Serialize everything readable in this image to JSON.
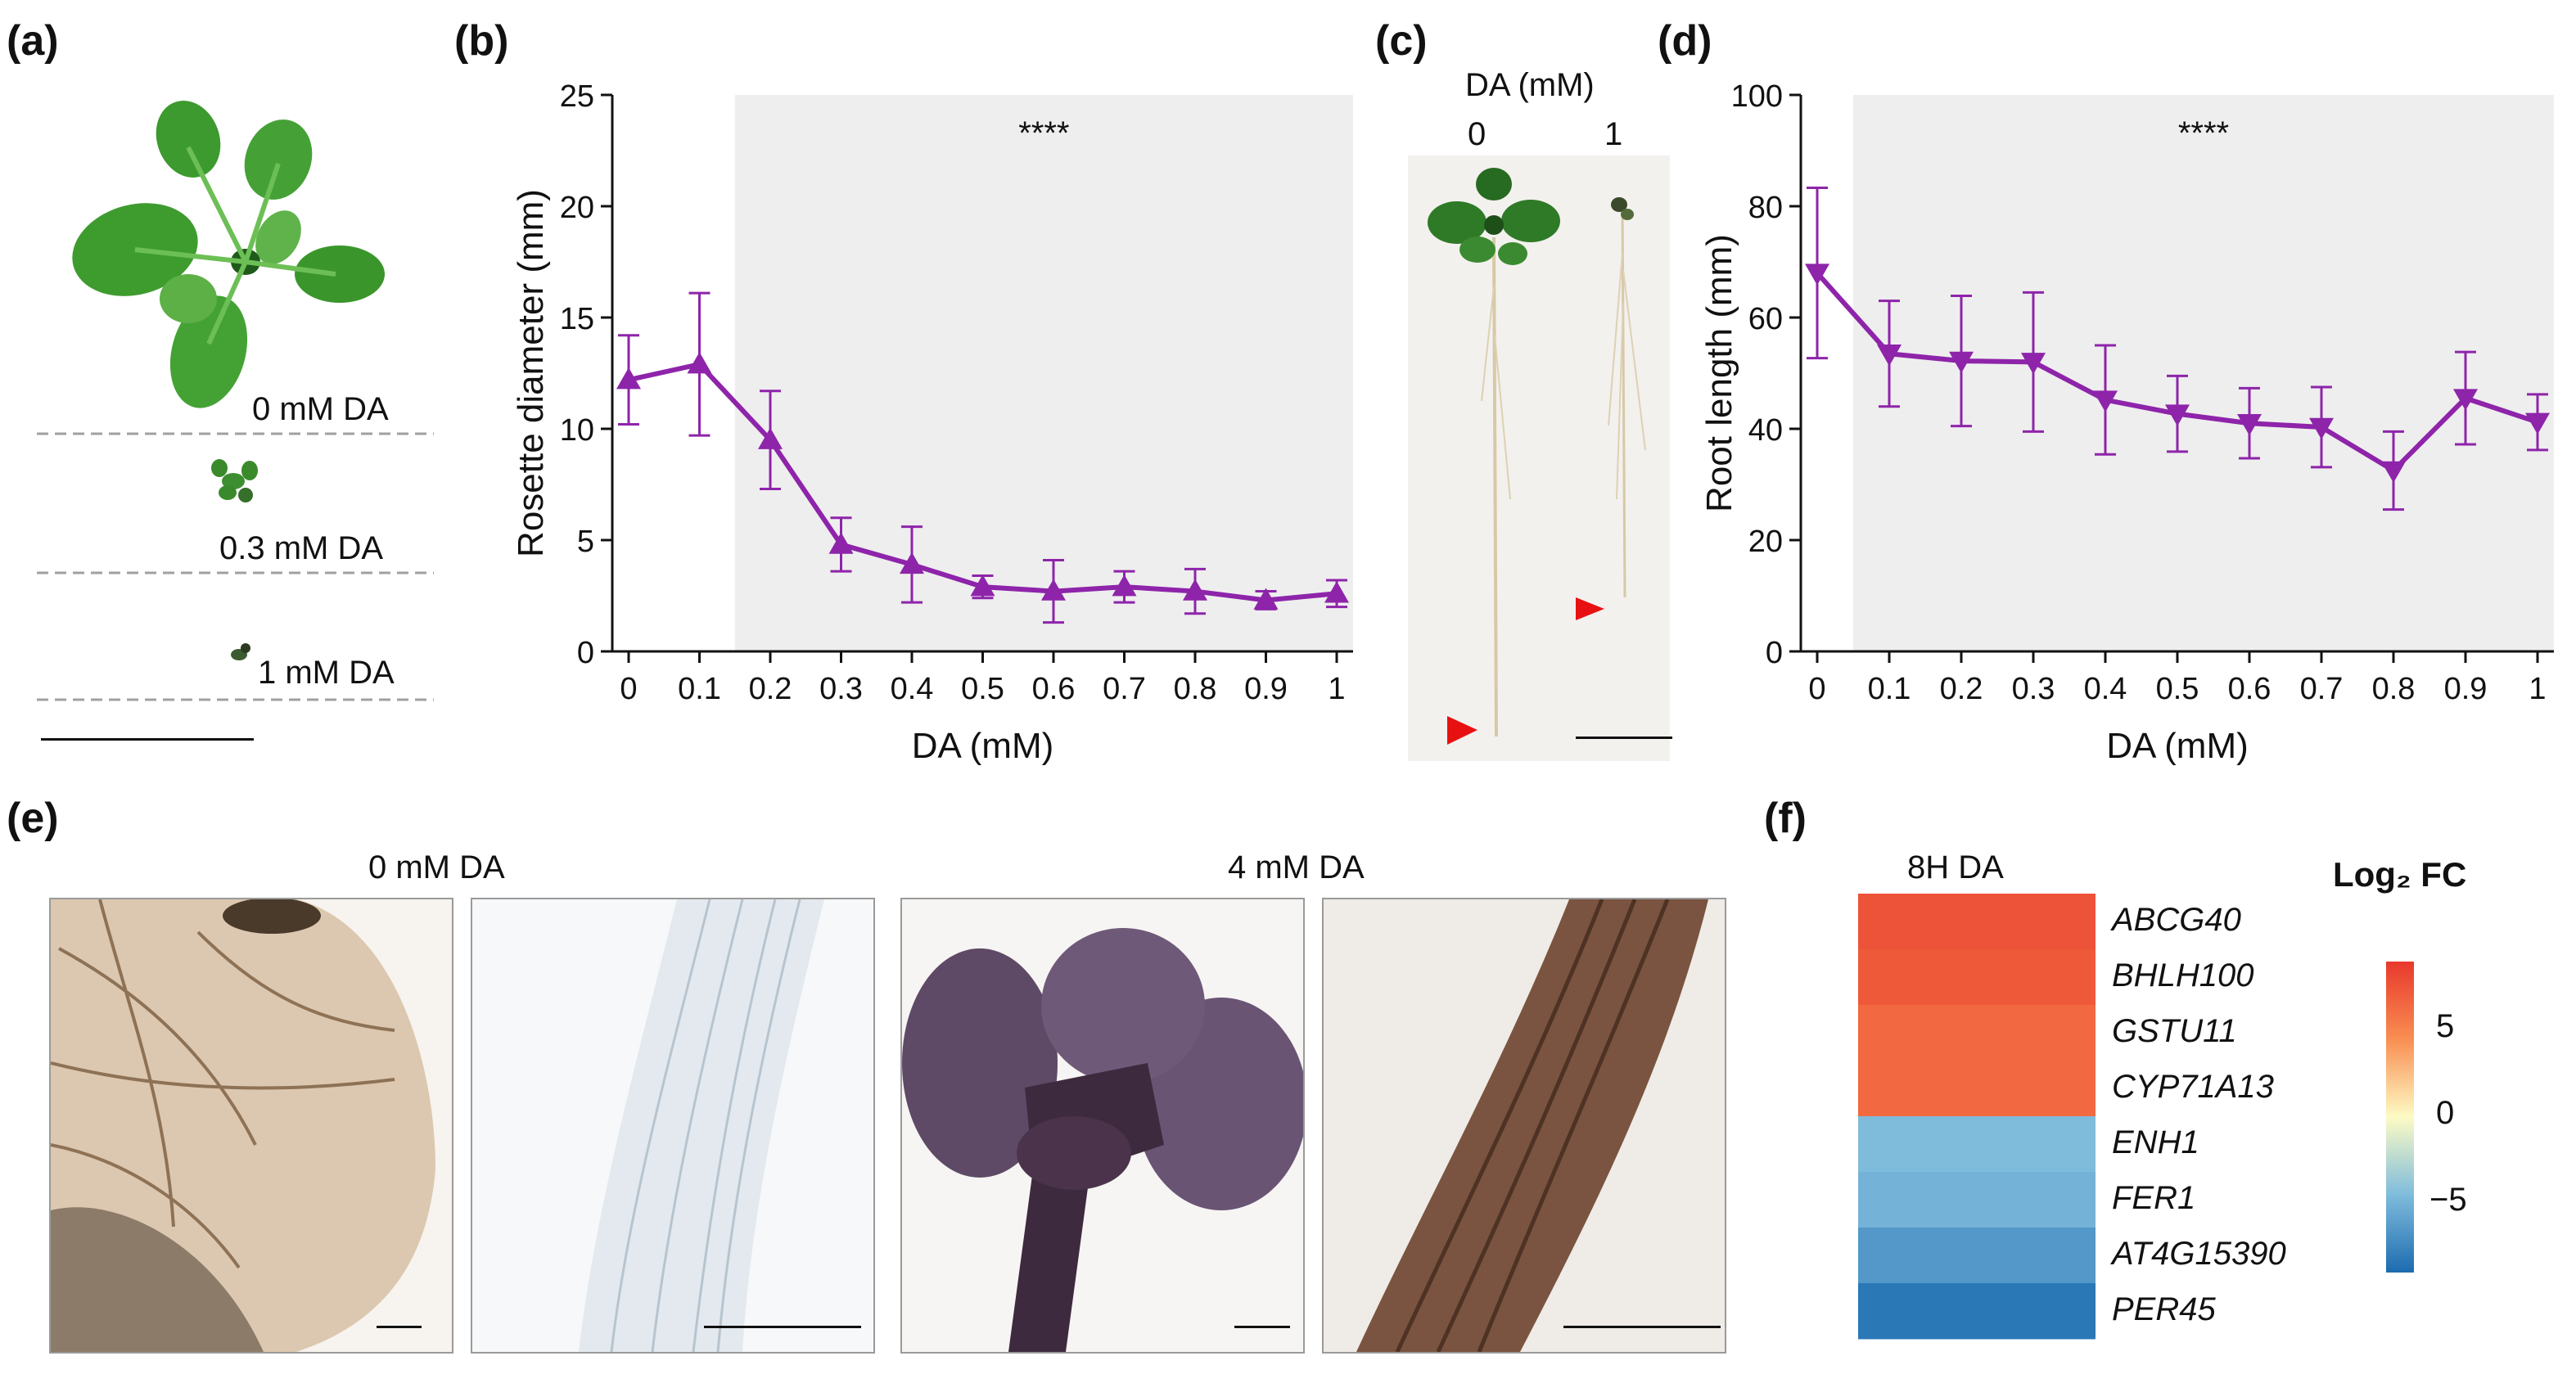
{
  "panel_labels": {
    "a": "(a)",
    "b": "(b)",
    "c": "(c)",
    "d": "(d)",
    "e": "(e)",
    "f": "(f)"
  },
  "panel_a": {
    "labels": [
      "0 mM DA",
      "0.3 mM DA",
      "1 mM DA"
    ]
  },
  "panel_c": {
    "title": "DA (mM)",
    "col_labels": [
      "0",
      "1"
    ]
  },
  "panel_e": {
    "titles": [
      "0 mM DA",
      "4 mM DA"
    ]
  },
  "panel_f": {
    "column_label": "8H DA",
    "genes": [
      "ABCG40",
      "BHLH100",
      "GSTU11",
      "CYP71A13",
      "ENH1",
      "FER1",
      "AT4G15390",
      "PER45"
    ],
    "colorbar_title": "Log₂ FC",
    "colorbar_ticks": [
      "5",
      "0",
      "−5"
    ]
  },
  "colors": {
    "series": "#8e24aa",
    "shade": "#eeeeee",
    "arrow": "#e81111"
  },
  "chart_data": [
    {
      "id": "b",
      "type": "line",
      "xlabel": "DA (mM)",
      "ylabel": "Rosette diameter (mm)",
      "x": [
        "0",
        "0.1",
        "0.2",
        "0.3",
        "0.4",
        "0.5",
        "0.6",
        "0.7",
        "0.8",
        "0.9",
        "1"
      ],
      "values": [
        12.2,
        12.9,
        9.5,
        4.8,
        3.9,
        2.9,
        2.7,
        2.9,
        2.7,
        2.3,
        2.6
      ],
      "errors": [
        2.0,
        3.2,
        2.2,
        1.2,
        1.7,
        0.5,
        1.4,
        0.7,
        1.0,
        0.4,
        0.6
      ],
      "ylim": [
        0,
        25
      ],
      "yticks": [
        "0",
        "5",
        "10",
        "15",
        "20",
        "25"
      ],
      "marker": "triangle-up",
      "shade_from": "0.2",
      "annotation": "****"
    },
    {
      "id": "d",
      "type": "line",
      "xlabel": "DA (mM)",
      "ylabel": "Root length (mm)",
      "x": [
        "0",
        "0.1",
        "0.2",
        "0.3",
        "0.4",
        "0.5",
        "0.6",
        "0.7",
        "0.8",
        "0.9",
        "1"
      ],
      "values": [
        68,
        53.5,
        52.2,
        52,
        45.2,
        42.7,
        41,
        40.3,
        32.5,
        45.5,
        41.2
      ],
      "errors": [
        15.3,
        9.5,
        11.7,
        12.5,
        9.8,
        6.8,
        6.3,
        7.2,
        7.0,
        8.3,
        5.0
      ],
      "ylim": [
        0,
        100
      ],
      "yticks": [
        "0",
        "20",
        "40",
        "60",
        "80",
        "100"
      ],
      "marker": "triangle-down",
      "shade_from": "0.1",
      "annotation": "****"
    },
    {
      "id": "f",
      "type": "heatmap",
      "rows": [
        "ABCG40",
        "BHLH100",
        "GSTU11",
        "CYP71A13",
        "ENH1",
        "FER1",
        "AT4G15390",
        "PER45"
      ],
      "columns": [
        "8H DA"
      ],
      "values": [
        7.6,
        7.3,
        6.5,
        6.5,
        -4.5,
        -5.0,
        -6.5,
        -8.3
      ],
      "range": [
        -9,
        9
      ]
    }
  ]
}
